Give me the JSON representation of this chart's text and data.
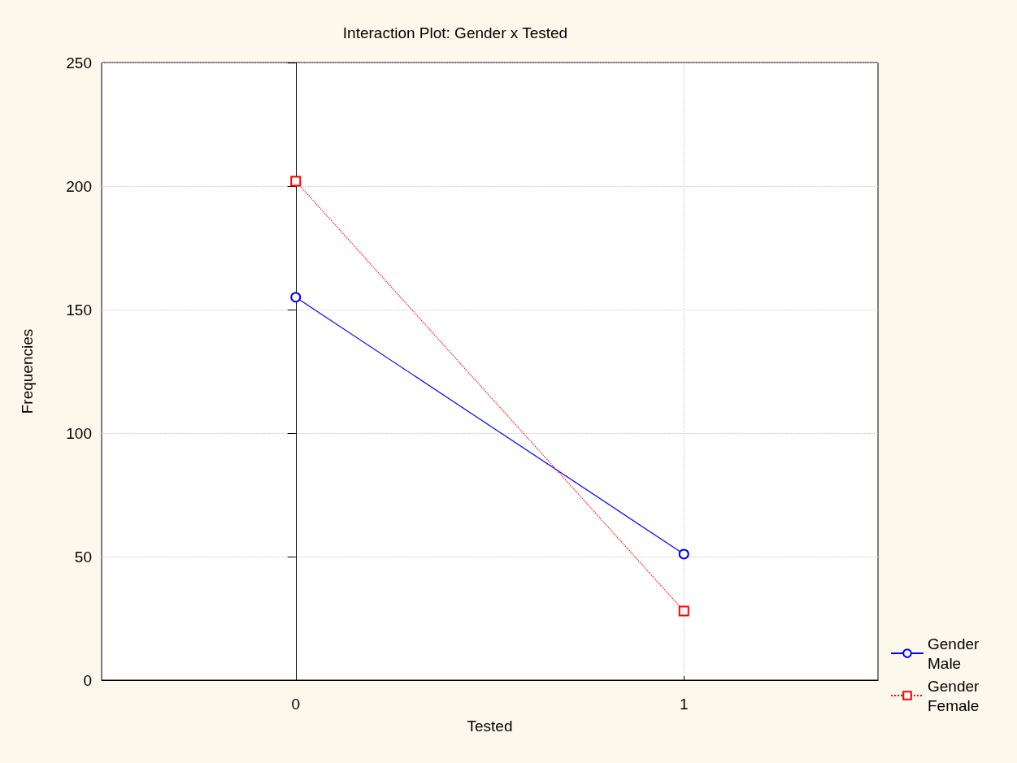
{
  "chart_data": {
    "type": "line",
    "title": "Interaction Plot: Gender x Tested",
    "xlabel": "Tested",
    "ylabel": "Frequencies",
    "x": [
      0,
      1
    ],
    "xlim": [
      -0.5,
      1.5
    ],
    "xticks": [
      0,
      1
    ],
    "ylim": [
      0,
      250
    ],
    "yticks": [
      0,
      50,
      100,
      150,
      200,
      250
    ],
    "series": [
      {
        "name": "Gender Male",
        "color": "#0000ff",
        "values": [
          155,
          51
        ],
        "marker": "circle",
        "line_style": "solid"
      },
      {
        "name": "Gender Female",
        "color": "#ff0000",
        "values": [
          202,
          28
        ],
        "marker": "square",
        "line_style": "dotted"
      }
    ],
    "grid": true,
    "legend": "bottom right"
  }
}
